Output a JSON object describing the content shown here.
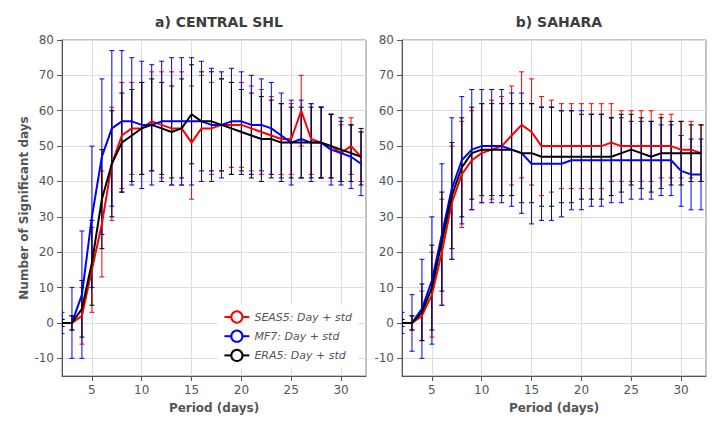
{
  "chart_data": [
    {
      "type": "line",
      "title": "a) CENTRAL SHL",
      "xlabel": "Period (days)",
      "ylabel": "Number of Significant days",
      "x": [
        2,
        3,
        4,
        5,
        6,
        7,
        8,
        9,
        10,
        11,
        12,
        13,
        14,
        15,
        16,
        17,
        18,
        19,
        20,
        21,
        22,
        23,
        24,
        25,
        26,
        27,
        28,
        29,
        30,
        31,
        32
      ],
      "series": [
        {
          "name": "SEAS5: Day + std",
          "color": "#ff0000",
          "values": [
            0,
            0,
            2,
            15,
            28,
            45,
            53,
            55,
            55,
            57,
            56,
            55,
            55,
            51,
            55,
            55,
            56,
            56,
            56,
            55,
            54,
            53,
            52,
            52,
            60,
            52,
            51,
            50,
            48,
            50,
            47
          ],
          "errors": [
            1,
            2,
            8,
            12,
            15,
            16,
            15,
            13,
            13,
            14,
            15,
            16,
            16,
            16,
            15,
            13,
            13,
            12,
            12,
            12,
            12,
            11,
            10,
            10,
            10,
            10,
            10,
            9,
            8,
            8,
            7
          ]
        },
        {
          "name": "MF7: Day + std",
          "color": "#0000ff",
          "values": [
            0,
            0,
            8,
            30,
            47,
            55,
            57,
            57,
            56,
            56,
            57,
            57,
            57,
            57,
            57,
            56,
            56,
            57,
            57,
            56,
            56,
            55,
            53,
            51,
            52,
            51,
            51,
            49,
            48,
            47,
            45
          ],
          "errors": [
            3,
            10,
            18,
            20,
            22,
            22,
            20,
            18,
            18,
            17,
            17,
            18,
            18,
            18,
            17,
            16,
            15,
            15,
            14,
            14,
            13,
            13,
            12,
            12,
            11,
            11,
            10,
            10,
            9,
            9,
            9
          ]
        },
        {
          "name": "ERA5: Day + std",
          "color": "#000000",
          "values": [
            0,
            0,
            4,
            17,
            35,
            45,
            51,
            53,
            55,
            56,
            55,
            54,
            55,
            59,
            57,
            57,
            56,
            55,
            54,
            53,
            52,
            52,
            51,
            51,
            51,
            51,
            51,
            50,
            49,
            48,
            47
          ],
          "errors": [
            1,
            2,
            8,
            12,
            14,
            15,
            14,
            13,
            13,
            13,
            13,
            13,
            14,
            14,
            14,
            14,
            13,
            13,
            12,
            12,
            12,
            11,
            11,
            10,
            10,
            10,
            10,
            9,
            9,
            8,
            8
          ]
        }
      ],
      "xlim": [
        2,
        32.5
      ],
      "xticks": [
        5,
        10,
        15,
        20,
        25,
        30
      ],
      "ylim": [
        -15,
        80
      ],
      "yticks": [
        -10,
        0,
        10,
        20,
        30,
        40,
        50,
        60,
        70,
        80
      ],
      "grid": true,
      "legend": "lower right"
    },
    {
      "type": "line",
      "title": "b) SAHARA",
      "xlabel": "Period (days)",
      "x": [
        2,
        3,
        4,
        5,
        6,
        7,
        8,
        9,
        10,
        11,
        12,
        13,
        14,
        15,
        16,
        17,
        18,
        19,
        20,
        21,
        22,
        23,
        24,
        25,
        26,
        27,
        28,
        29,
        30,
        31,
        32
      ],
      "series": [
        {
          "name": "SEAS5: Day + std",
          "color": "#ff0000",
          "values": [
            0,
            0,
            2,
            8,
            20,
            34,
            42,
            46,
            48,
            49,
            50,
            53,
            56,
            54,
            50,
            50,
            50,
            50,
            50,
            50,
            50,
            51,
            50,
            50,
            50,
            50,
            50,
            50,
            49,
            49,
            48
          ],
          "errors": [
            1,
            2,
            7,
            12,
            15,
            16,
            15,
            14,
            14,
            14,
            14,
            14,
            15,
            15,
            14,
            13,
            12,
            12,
            12,
            12,
            12,
            11,
            10,
            10,
            10,
            10,
            9,
            9,
            8,
            8,
            8
          ]
        },
        {
          "name": "MF7: Day + std",
          "color": "#0000ff",
          "values": [
            0,
            0,
            4,
            12,
            25,
            38,
            46,
            49,
            50,
            50,
            50,
            49,
            48,
            45,
            45,
            45,
            45,
            46,
            46,
            46,
            46,
            46,
            46,
            46,
            46,
            46,
            46,
            46,
            43,
            42,
            42
          ],
          "errors": [
            3,
            8,
            14,
            18,
            20,
            20,
            18,
            17,
            16,
            16,
            16,
            16,
            17,
            17,
            16,
            16,
            15,
            14,
            14,
            13,
            13,
            12,
            12,
            11,
            11,
            11,
            10,
            10,
            10,
            10,
            10
          ]
        },
        {
          "name": "ERA5: Day + std",
          "color": "#000000",
          "values": [
            0,
            0,
            3,
            10,
            23,
            36,
            44,
            48,
            49,
            49,
            49,
            49,
            48,
            48,
            47,
            47,
            47,
            47,
            47,
            47,
            47,
            47,
            48,
            49,
            48,
            47,
            48,
            48,
            48,
            48,
            48
          ],
          "errors": [
            1,
            2,
            8,
            12,
            14,
            15,
            14,
            13,
            13,
            13,
            13,
            13,
            14,
            14,
            14,
            14,
            13,
            13,
            12,
            12,
            12,
            11,
            11,
            10,
            10,
            10,
            10,
            9,
            9,
            8,
            8
          ]
        }
      ],
      "xlim": [
        2,
        32.5
      ],
      "xticks": [
        5,
        10,
        15,
        20,
        25,
        30
      ],
      "ylim": [
        -15,
        80
      ],
      "yticks": [
        -10,
        0,
        10,
        20,
        30,
        40,
        50,
        60,
        70,
        80
      ],
      "grid": true
    }
  ]
}
